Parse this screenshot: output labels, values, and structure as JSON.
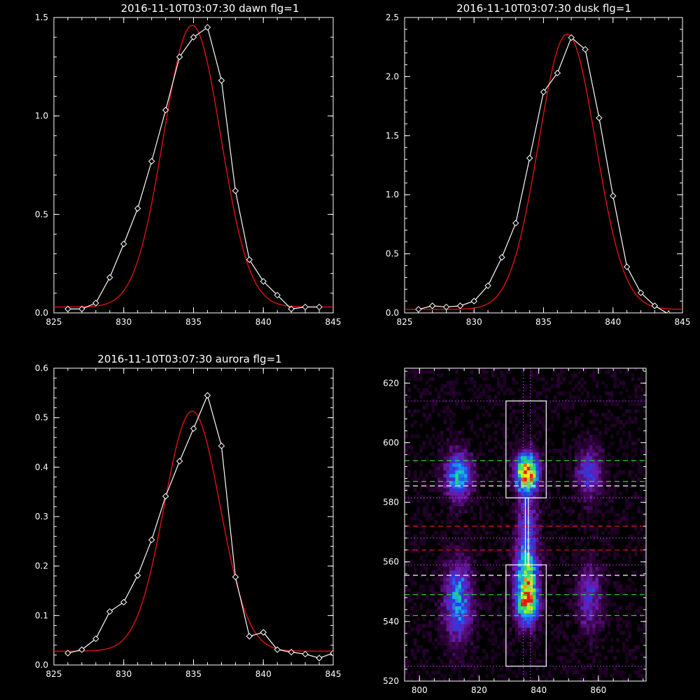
{
  "colors": {
    "background": "#000000",
    "axes": "#ffffff",
    "observed": "#ffffff",
    "fit": "#e01010",
    "green_guides": "#30d030",
    "red_guides": "#e01010",
    "white_guides": "#ffffff",
    "magenta_guides": "#c040ff"
  },
  "chart_data": [
    {
      "type": "line",
      "title": "2016-11-10T03:07:30 dawn flg=1",
      "xlim": [
        825,
        845
      ],
      "ylim": [
        0,
        1.5
      ],
      "xticks": [
        825,
        830,
        835,
        840,
        845
      ],
      "xtick_labels": [
        "825",
        "830",
        "835",
        "840",
        "845"
      ],
      "yticks": [
        0,
        0.5,
        1.0,
        1.5
      ],
      "ytick_labels": [
        "0.0",
        "0.5",
        "1.0",
        "1.5"
      ],
      "observed": {
        "x": [
          826,
          827,
          828,
          829,
          830,
          831,
          832,
          833,
          834,
          835,
          836,
          837,
          838,
          839,
          840,
          841,
          842,
          843,
          844
        ],
        "y": [
          0.02,
          0.02,
          0.05,
          0.18,
          0.35,
          0.53,
          0.77,
          1.03,
          1.3,
          1.4,
          1.45,
          1.18,
          0.62,
          0.27,
          0.16,
          0.09,
          0.02,
          0.03,
          0.03
        ]
      },
      "fit": {
        "amplitude": 1.43,
        "center": 834.9,
        "sigma": 2.05,
        "offset": 0.03
      }
    },
    {
      "type": "line",
      "title": "2016-11-10T03:07:30 dusk flg=1",
      "xlim": [
        825,
        845
      ],
      "ylim": [
        0,
        2.5
      ],
      "xticks": [
        825,
        830,
        835,
        840,
        845
      ],
      "xtick_labels": [
        "825",
        "830",
        "835",
        "840",
        "845"
      ],
      "yticks": [
        0,
        0.5,
        1.0,
        1.5,
        2.0,
        2.5
      ],
      "ytick_labels": [
        "0.0",
        "0.5",
        "1.0",
        "1.5",
        "2.0",
        "2.5"
      ],
      "observed": {
        "x": [
          826,
          827,
          828,
          829,
          830,
          831,
          832,
          833,
          834,
          835,
          836,
          837,
          838,
          839,
          840,
          841,
          842,
          843,
          844
        ],
        "y": [
          0.03,
          0.06,
          0.05,
          0.06,
          0.1,
          0.23,
          0.47,
          0.76,
          1.31,
          1.87,
          2.03,
          2.33,
          2.23,
          1.65,
          0.99,
          0.39,
          0.17,
          0.06,
          -0.01
        ]
      },
      "fit": {
        "amplitude": 2.33,
        "center": 836.7,
        "sigma": 2.05,
        "offset": 0.03
      }
    },
    {
      "type": "line",
      "title": "2016-11-10T03:07:30 aurora flg=1",
      "xlim": [
        825,
        845
      ],
      "ylim": [
        0,
        0.6
      ],
      "xticks": [
        825,
        830,
        835,
        840,
        845
      ],
      "xtick_labels": [
        "825",
        "830",
        "835",
        "840",
        "845"
      ],
      "yticks": [
        0,
        0.1,
        0.2,
        0.3,
        0.4,
        0.5,
        0.6
      ],
      "ytick_labels": [
        "0.0",
        "0.1",
        "0.2",
        "0.3",
        "0.4",
        "0.5",
        "0.6"
      ],
      "observed": {
        "x": [
          826,
          827,
          828,
          829,
          830,
          831,
          832,
          833,
          834,
          835,
          836,
          837,
          838,
          839,
          840,
          841,
          842,
          843,
          844,
          845
        ],
        "y": [
          0.024,
          0.031,
          0.053,
          0.108,
          0.127,
          0.181,
          0.253,
          0.341,
          0.412,
          0.478,
          0.545,
          0.443,
          0.178,
          0.058,
          0.066,
          0.031,
          0.026,
          0.022,
          0.014,
          0.024
        ]
      },
      "fit": {
        "amplitude": 0.485,
        "center": 834.9,
        "sigma": 2.0,
        "offset": 0.028
      }
    },
    {
      "type": "heatmap",
      "title": "",
      "xlim": [
        795,
        876
      ],
      "ylim": [
        520,
        625
      ],
      "xticks": [
        800,
        820,
        840,
        860
      ],
      "xtick_labels": [
        "800",
        "820",
        "840",
        "860"
      ],
      "yticks": [
        520,
        540,
        560,
        580,
        600,
        620
      ],
      "ytick_labels": [
        "520",
        "540",
        "560",
        "580",
        "600",
        "620"
      ],
      "columns": [
        {
          "x": 813,
          "width": 3.2,
          "blobs": [
            {
              "y": 589,
              "sigma": 5.5,
              "amp": 0.55
            },
            {
              "y": 547,
              "sigma": 9,
              "amp": 0.5
            }
          ]
        },
        {
          "x": 836,
          "width": 2.6,
          "blobs": [
            {
              "y": 590,
              "sigma": 4.5,
              "amp": 1.0
            },
            {
              "y": 546,
              "sigma": 5,
              "amp": 0.8
            },
            {
              "y": 556,
              "sigma": 6,
              "amp": 0.55
            },
            {
              "y": 570,
              "sigma": 9,
              "amp": 0.35
            }
          ]
        },
        {
          "x": 857,
          "width": 3.0,
          "blobs": [
            {
              "y": 590,
              "sigma": 6,
              "amp": 0.35
            },
            {
              "y": 548,
              "sigma": 8,
              "amp": 0.3
            }
          ]
        }
      ],
      "boxes": [
        {
          "x0": 829,
          "x1": 842.5,
          "y0": 525,
          "y1": 559
        },
        {
          "x0": 829,
          "x1": 842.5,
          "y0": 581.5,
          "y1": 614
        },
        {
          "x0": 835.5,
          "x1": 836.5,
          "y0": 559,
          "y1": 581.5
        }
      ],
      "h_dashed": [
        {
          "y": 594,
          "color": "green"
        },
        {
          "y": 587,
          "color": "green"
        },
        {
          "y": 585.5,
          "color": "white"
        },
        {
          "y": 572,
          "color": "red"
        },
        {
          "y": 564,
          "color": "red"
        },
        {
          "y": 555.5,
          "color": "white"
        },
        {
          "y": 549,
          "color": "green"
        },
        {
          "y": 542,
          "color": "green"
        }
      ],
      "h_dotted": [
        614,
        581.5,
        568,
        559,
        525
      ],
      "v_dotted": [
        834.8,
        837.2
      ]
    }
  ]
}
